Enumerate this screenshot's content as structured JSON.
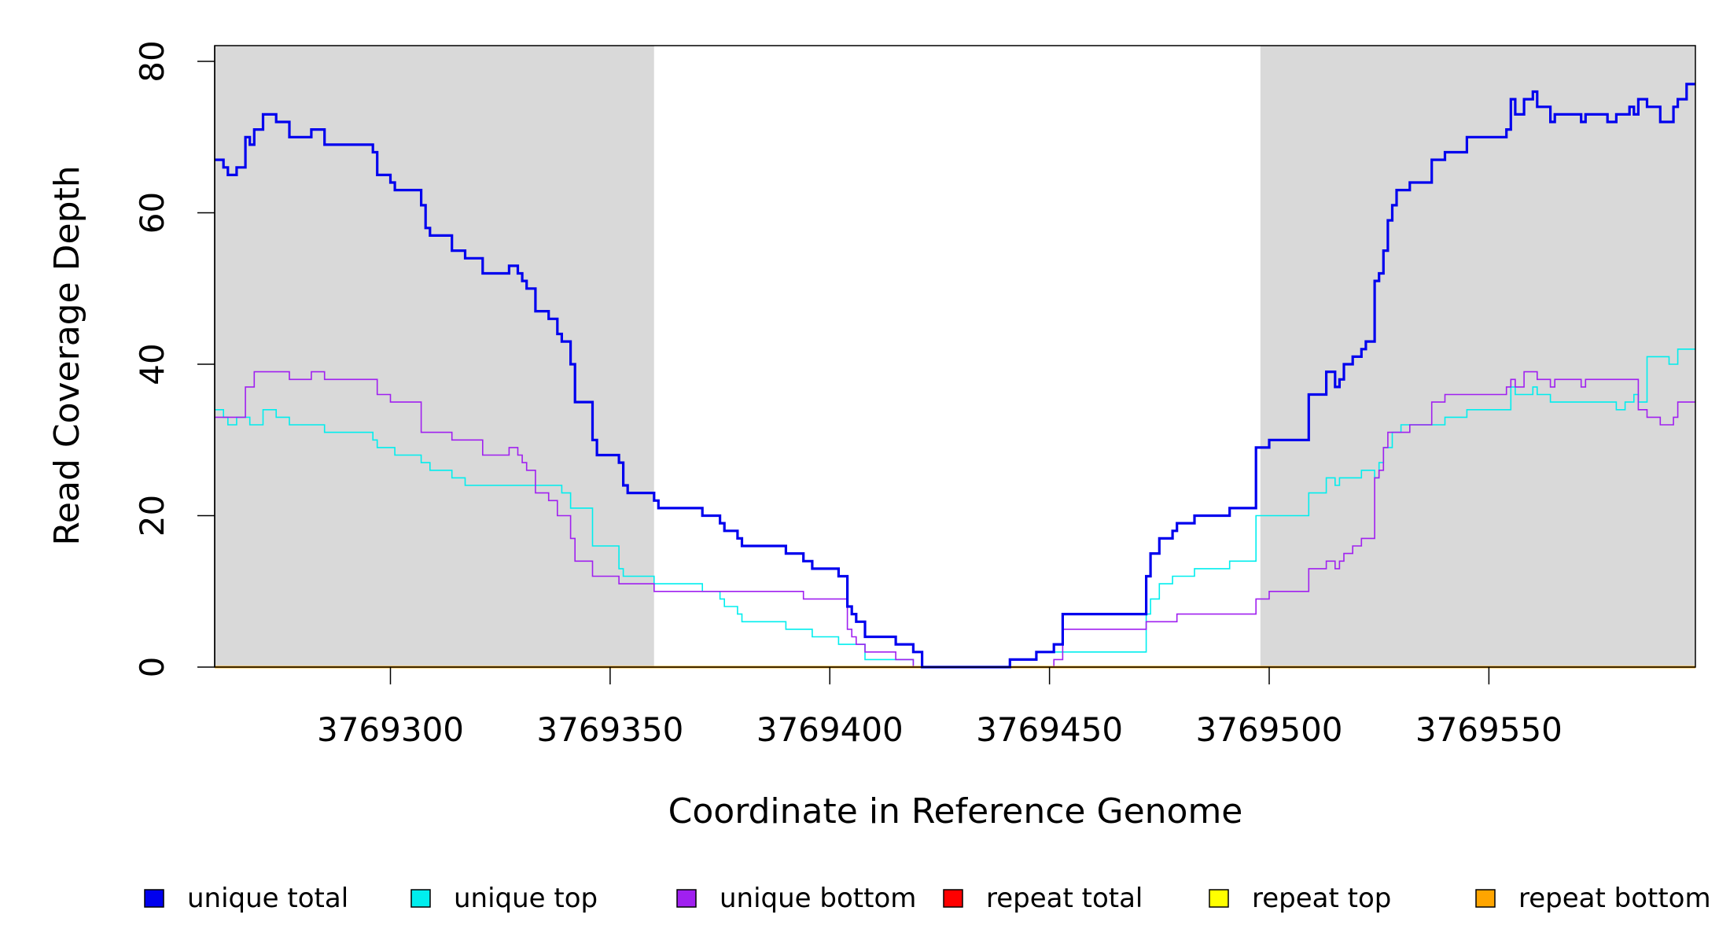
{
  "chart_data": {
    "type": "line",
    "title": "",
    "xlabel": "Coordinate in Reference Genome",
    "ylabel": "Read Coverage Depth",
    "xlim": [
      3769260,
      3769597
    ],
    "ylim": [
      0,
      80
    ],
    "xticks": [
      3769300,
      3769350,
      3769400,
      3769450,
      3769500,
      3769550
    ],
    "xtick_labels": [
      "3769300",
      "3769350",
      "3769400",
      "3769450",
      "3769500",
      "3769550"
    ],
    "yticks": [
      0,
      20,
      40,
      60,
      80
    ],
    "ytick_labels": [
      "0",
      "20",
      "40",
      "60",
      "80"
    ],
    "shaded_regions": [
      [
        3769260,
        3769360
      ],
      [
        3769498,
        3769597
      ]
    ],
    "grid": false,
    "legend_position": "bottom",
    "step": true,
    "series": [
      {
        "name": "unique total",
        "color": "#0000ee",
        "points": [
          [
            3769260,
            67
          ],
          [
            3769262,
            66
          ],
          [
            3769263,
            65
          ],
          [
            3769265,
            66
          ],
          [
            3769267,
            70
          ],
          [
            3769268,
            69
          ],
          [
            3769269,
            71
          ],
          [
            3769271,
            73
          ],
          [
            3769274,
            72
          ],
          [
            3769277,
            70
          ],
          [
            3769282,
            71
          ],
          [
            3769285,
            69
          ],
          [
            3769296,
            68
          ],
          [
            3769297,
            65
          ],
          [
            3769300,
            64
          ],
          [
            3769301,
            63
          ],
          [
            3769307,
            61
          ],
          [
            3769308,
            58
          ],
          [
            3769309,
            57
          ],
          [
            3769314,
            55
          ],
          [
            3769317,
            54
          ],
          [
            3769321,
            52
          ],
          [
            3769327,
            53
          ],
          [
            3769329,
            52
          ],
          [
            3769330,
            51
          ],
          [
            3769331,
            50
          ],
          [
            3769333,
            47
          ],
          [
            3769336,
            46
          ],
          [
            3769338,
            44
          ],
          [
            3769339,
            43
          ],
          [
            3769341,
            40
          ],
          [
            3769342,
            35
          ],
          [
            3769346,
            30
          ],
          [
            3769347,
            28
          ],
          [
            3769352,
            27
          ],
          [
            3769353,
            24
          ],
          [
            3769354,
            23
          ],
          [
            3769360,
            22
          ],
          [
            3769361,
            21
          ],
          [
            3769371,
            20
          ],
          [
            3769375,
            19
          ],
          [
            3769376,
            18
          ],
          [
            3769379,
            17
          ],
          [
            3769380,
            16
          ],
          [
            3769390,
            15
          ],
          [
            3769394,
            14
          ],
          [
            3769396,
            13
          ],
          [
            3769402,
            12
          ],
          [
            3769404,
            8
          ],
          [
            3769405,
            7
          ],
          [
            3769406,
            6
          ],
          [
            3769408,
            4
          ],
          [
            3769415,
            3
          ],
          [
            3769419,
            2
          ],
          [
            3769421,
            0
          ],
          [
            3769441,
            1
          ],
          [
            3769447,
            2
          ],
          [
            3769451,
            3
          ],
          [
            3769453,
            7
          ],
          [
            3769472,
            12
          ],
          [
            3769473,
            15
          ],
          [
            3769475,
            17
          ],
          [
            3769478,
            18
          ],
          [
            3769479,
            19
          ],
          [
            3769483,
            20
          ],
          [
            3769491,
            21
          ],
          [
            3769497,
            29
          ],
          [
            3769500,
            30
          ],
          [
            3769509,
            36
          ],
          [
            3769513,
            39
          ],
          [
            3769515,
            37
          ],
          [
            3769516,
            38
          ],
          [
            3769517,
            40
          ],
          [
            3769519,
            41
          ],
          [
            3769521,
            42
          ],
          [
            3769522,
            43
          ],
          [
            3769524,
            51
          ],
          [
            3769525,
            52
          ],
          [
            3769526,
            55
          ],
          [
            3769527,
            59
          ],
          [
            3769528,
            61
          ],
          [
            3769529,
            63
          ],
          [
            3769532,
            64
          ],
          [
            3769537,
            67
          ],
          [
            3769540,
            68
          ],
          [
            3769545,
            70
          ],
          [
            3769554,
            71
          ],
          [
            3769555,
            75
          ],
          [
            3769556,
            73
          ],
          [
            3769558,
            75
          ],
          [
            3769560,
            76
          ],
          [
            3769561,
            74
          ],
          [
            3769564,
            72
          ],
          [
            3769565,
            73
          ],
          [
            3769571,
            72
          ],
          [
            3769572,
            73
          ],
          [
            3769577,
            72
          ],
          [
            3769579,
            73
          ],
          [
            3769582,
            74
          ],
          [
            3769583,
            73
          ],
          [
            3769584,
            75
          ],
          [
            3769586,
            74
          ],
          [
            3769589,
            72
          ],
          [
            3769592,
            74
          ],
          [
            3769593,
            75
          ],
          [
            3769595,
            77
          ],
          [
            3769597,
            77
          ]
        ]
      },
      {
        "name": "unique top",
        "color": "#00eeee",
        "points": [
          [
            3769260,
            34
          ],
          [
            3769262,
            33
          ],
          [
            3769263,
            32
          ],
          [
            3769265,
            33
          ],
          [
            3769268,
            32
          ],
          [
            3769271,
            34
          ],
          [
            3769274,
            33
          ],
          [
            3769277,
            32
          ],
          [
            3769285,
            31
          ],
          [
            3769296,
            30
          ],
          [
            3769297,
            29
          ],
          [
            3769301,
            28
          ],
          [
            3769307,
            27
          ],
          [
            3769309,
            26
          ],
          [
            3769314,
            25
          ],
          [
            3769317,
            24
          ],
          [
            3769333,
            24
          ],
          [
            3769339,
            23
          ],
          [
            3769341,
            21
          ],
          [
            3769346,
            16
          ],
          [
            3769352,
            13
          ],
          [
            3769353,
            12
          ],
          [
            3769360,
            11
          ],
          [
            3769371,
            10
          ],
          [
            3769375,
            9
          ],
          [
            3769376,
            8
          ],
          [
            3769379,
            7
          ],
          [
            3769380,
            6
          ],
          [
            3769390,
            5
          ],
          [
            3769396,
            4
          ],
          [
            3769402,
            3
          ],
          [
            3769408,
            1
          ],
          [
            3769419,
            0
          ],
          [
            3769441,
            1
          ],
          [
            3769447,
            2
          ],
          [
            3769472,
            7
          ],
          [
            3769473,
            9
          ],
          [
            3769475,
            11
          ],
          [
            3769478,
            12
          ],
          [
            3769483,
            13
          ],
          [
            3769491,
            14
          ],
          [
            3769497,
            20
          ],
          [
            3769509,
            23
          ],
          [
            3769513,
            25
          ],
          [
            3769515,
            24
          ],
          [
            3769516,
            25
          ],
          [
            3769521,
            26
          ],
          [
            3769524,
            25
          ],
          [
            3769525,
            27
          ],
          [
            3769526,
            29
          ],
          [
            3769528,
            31
          ],
          [
            3769530,
            32
          ],
          [
            3769540,
            33
          ],
          [
            3769545,
            34
          ],
          [
            3769555,
            37
          ],
          [
            3769556,
            36
          ],
          [
            3769560,
            37
          ],
          [
            3769561,
            36
          ],
          [
            3769564,
            35
          ],
          [
            3769579,
            34
          ],
          [
            3769581,
            35
          ],
          [
            3769583,
            36
          ],
          [
            3769584,
            35
          ],
          [
            3769586,
            41
          ],
          [
            3769591,
            40
          ],
          [
            3769593,
            42
          ],
          [
            3769597,
            42
          ]
        ]
      },
      {
        "name": "unique bottom",
        "color": "#a020f0",
        "points": [
          [
            3769260,
            33
          ],
          [
            3769267,
            37
          ],
          [
            3769269,
            39
          ],
          [
            3769277,
            38
          ],
          [
            3769282,
            39
          ],
          [
            3769285,
            38
          ],
          [
            3769297,
            36
          ],
          [
            3769300,
            35
          ],
          [
            3769307,
            31
          ],
          [
            3769314,
            30
          ],
          [
            3769321,
            28
          ],
          [
            3769327,
            29
          ],
          [
            3769329,
            28
          ],
          [
            3769330,
            27
          ],
          [
            3769331,
            26
          ],
          [
            3769333,
            23
          ],
          [
            3769336,
            22
          ],
          [
            3769338,
            20
          ],
          [
            3769341,
            17
          ],
          [
            3769342,
            14
          ],
          [
            3769346,
            12
          ],
          [
            3769352,
            11
          ],
          [
            3769360,
            10
          ],
          [
            3769361,
            10
          ],
          [
            3769394,
            9
          ],
          [
            3769404,
            5
          ],
          [
            3769405,
            4
          ],
          [
            3769406,
            3
          ],
          [
            3769408,
            2
          ],
          [
            3769415,
            1
          ],
          [
            3769419,
            0
          ],
          [
            3769451,
            1
          ],
          [
            3769453,
            5
          ],
          [
            3769472,
            6
          ],
          [
            3769479,
            7
          ],
          [
            3769497,
            9
          ],
          [
            3769500,
            10
          ],
          [
            3769509,
            13
          ],
          [
            3769513,
            14
          ],
          [
            3769515,
            13
          ],
          [
            3769516,
            14
          ],
          [
            3769517,
            15
          ],
          [
            3769519,
            16
          ],
          [
            3769521,
            17
          ],
          [
            3769524,
            25
          ],
          [
            3769525,
            26
          ],
          [
            3769526,
            29
          ],
          [
            3769527,
            31
          ],
          [
            3769532,
            32
          ],
          [
            3769537,
            35
          ],
          [
            3769540,
            36
          ],
          [
            3769554,
            37
          ],
          [
            3769555,
            38
          ],
          [
            3769556,
            37
          ],
          [
            3769558,
            39
          ],
          [
            3769561,
            38
          ],
          [
            3769564,
            37
          ],
          [
            3769565,
            38
          ],
          [
            3769571,
            37
          ],
          [
            3769572,
            38
          ],
          [
            3769584,
            34
          ],
          [
            3769586,
            33
          ],
          [
            3769589,
            32
          ],
          [
            3769592,
            33
          ],
          [
            3769593,
            35
          ],
          [
            3769597,
            35
          ]
        ]
      },
      {
        "name": "repeat total",
        "color": "#ff0000",
        "points": [
          [
            3769260,
            0
          ],
          [
            3769597,
            0
          ]
        ]
      },
      {
        "name": "repeat top",
        "color": "#ffff00",
        "points": [
          [
            3769260,
            0
          ],
          [
            3769597,
            0
          ]
        ]
      },
      {
        "name": "repeat bottom",
        "color": "#ffa500",
        "points": [
          [
            3769260,
            0
          ],
          [
            3769597,
            0
          ]
        ]
      }
    ]
  }
}
